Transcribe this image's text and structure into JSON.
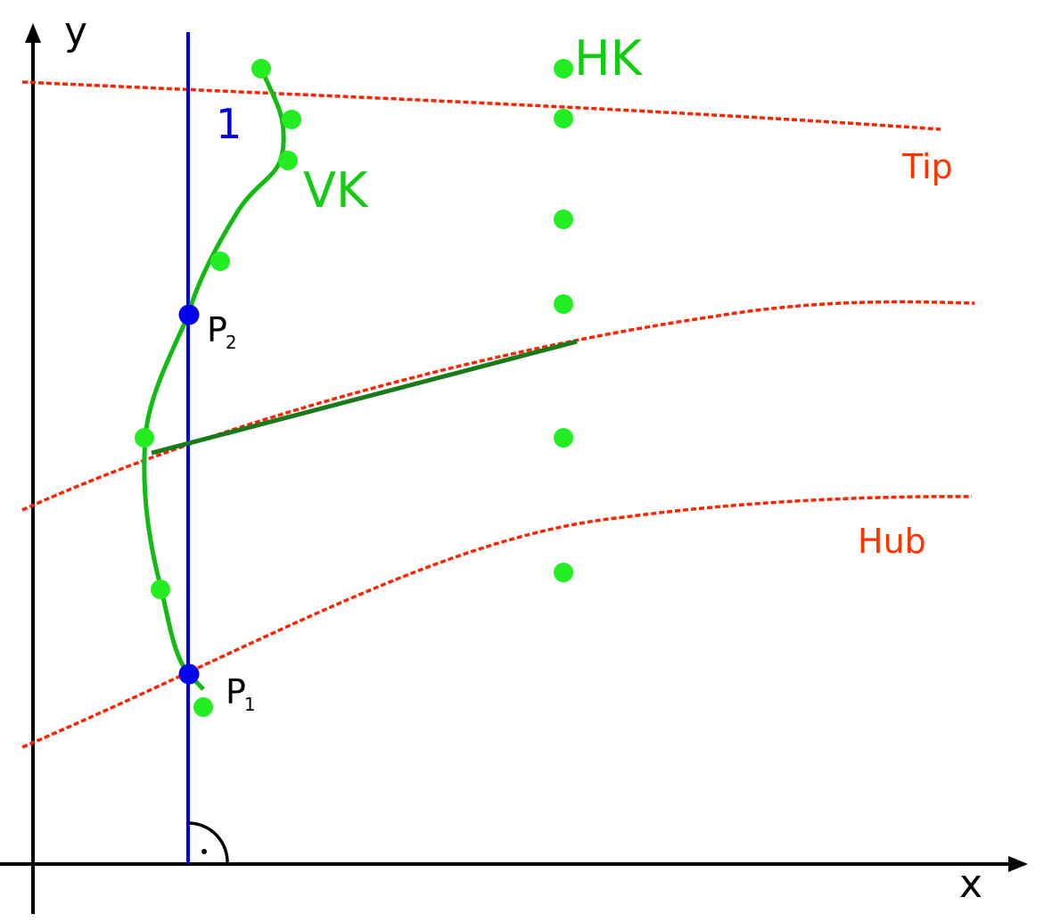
{
  "axes": {
    "x_label": "x",
    "y_label": "y"
  },
  "labels": {
    "line_number": "1",
    "hk": "HK",
    "vk": "VK",
    "tip": "Tip",
    "hub": "Hub",
    "p2_base": "P",
    "p2_sub": "2",
    "p1_base": "P",
    "p1_sub": "1"
  },
  "colors": {
    "axis": "#000000",
    "blue": "#0000ee",
    "green": "#00cc00",
    "green_light": "#22ee22",
    "green_dark": "#1a7a1a",
    "red": "#ff2200",
    "label_red": "#ff3300",
    "label_green": "#11cc11",
    "label_blue": "#0000ee"
  }
}
